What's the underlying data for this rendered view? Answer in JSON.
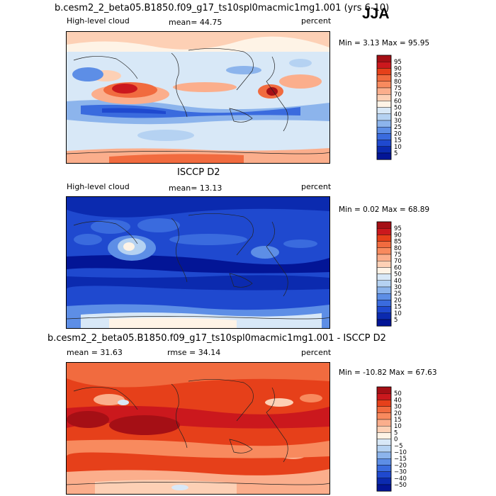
{
  "season_label": "JJA",
  "panels": [
    {
      "id": "model",
      "title": "b.cesm2_2_beta05.B1850.f09_g17_ts10spl0macmic1mg1.001 (yrs 6-10)",
      "left_label": "High-level cloud",
      "mid_label": "mean=  44.75",
      "right_label": "percent",
      "minmax": "Min =    3.13 Max =   95.95",
      "colorbar_levels": [
        "95",
        "90",
        "85",
        "80",
        "75",
        "70",
        "60",
        "50",
        "40",
        "30",
        "25",
        "20",
        "15",
        "10",
        "5"
      ],
      "colorbar_colors": [
        "#a50f15",
        "#cb181d",
        "#e6401a",
        "#f16b3f",
        "#f88a5e",
        "#fbae8c",
        "#fdd0b5",
        "#fef3e6",
        "#d8e8f7",
        "#b5d2f2",
        "#8cb4ec",
        "#5d8ee6",
        "#3a6bde",
        "#1f49cf",
        "#0b2aaf",
        "#031596"
      ]
    },
    {
      "id": "obs",
      "title": "ISCCP D2",
      "left_label": "High-level cloud",
      "mid_label": "mean=  13.13",
      "right_label": "percent",
      "minmax": "Min =   0.02 Max =   68.89",
      "colorbar_levels": [
        "95",
        "90",
        "85",
        "80",
        "75",
        "70",
        "60",
        "50",
        "40",
        "30",
        "25",
        "20",
        "15",
        "10",
        "5"
      ],
      "colorbar_colors": [
        "#a50f15",
        "#cb181d",
        "#e6401a",
        "#f16b3f",
        "#f88a5e",
        "#fbae8c",
        "#fdd0b5",
        "#fef3e6",
        "#d8e8f7",
        "#b5d2f2",
        "#8cb4ec",
        "#5d8ee6",
        "#3a6bde",
        "#1f49cf",
        "#0b2aaf",
        "#031596"
      ]
    },
    {
      "id": "diff",
      "title": "b.cesm2_2_beta05.B1850.f09_g17_ts10spl0macmic1mg1.001 - ISCCP D2",
      "left_label": "mean =   31.63",
      "mid_label": "rmse =   34.14",
      "right_label": "percent",
      "minmax": "Min = -10.82 Max =   67.63",
      "colorbar_levels": [
        "50",
        "40",
        "30",
        "20",
        "15",
        "10",
        "5",
        "0",
        "−5",
        "−10",
        "−15",
        "−20",
        "−30",
        "−40",
        "−50"
      ],
      "colorbar_colors": [
        "#a50f15",
        "#cb181d",
        "#e6401a",
        "#f16b3f",
        "#f88a5e",
        "#fbae8c",
        "#fdd0b5",
        "#fef3e6",
        "#d8e8f7",
        "#b5d2f2",
        "#8cb4ec",
        "#5d8ee6",
        "#3a6bde",
        "#1f49cf",
        "#0b2aaf",
        "#031596"
      ]
    }
  ],
  "chart_data": [
    {
      "type": "heatmap",
      "title": "b.cesm2_2_beta05.B1850.f09_g17_ts10spl0macmic1mg1.001 (yrs 6-10)",
      "variable": "High-level cloud",
      "units": "percent",
      "season": "JJA",
      "mean": 44.75,
      "min": 3.13,
      "max": 95.95,
      "contour_levels": [
        5,
        10,
        15,
        20,
        25,
        30,
        40,
        50,
        60,
        70,
        75,
        80,
        85,
        90,
        95
      ]
    },
    {
      "type": "heatmap",
      "title": "ISCCP D2",
      "variable": "High-level cloud",
      "units": "percent",
      "mean": 13.13,
      "min": 0.02,
      "max": 68.89,
      "contour_levels": [
        5,
        10,
        15,
        20,
        25,
        30,
        40,
        50,
        60,
        70,
        75,
        80,
        85,
        90,
        95
      ]
    },
    {
      "type": "heatmap",
      "title": "b.cesm2_2_beta05.B1850.f09_g17_ts10spl0macmic1mg1.001 - ISCCP D2",
      "units": "percent",
      "mean": 31.63,
      "rmse": 34.14,
      "min": -10.82,
      "max": 67.63,
      "contour_levels": [
        -50,
        -40,
        -30,
        -20,
        -15,
        -10,
        -5,
        0,
        5,
        10,
        15,
        20,
        30,
        40,
        50
      ]
    }
  ]
}
